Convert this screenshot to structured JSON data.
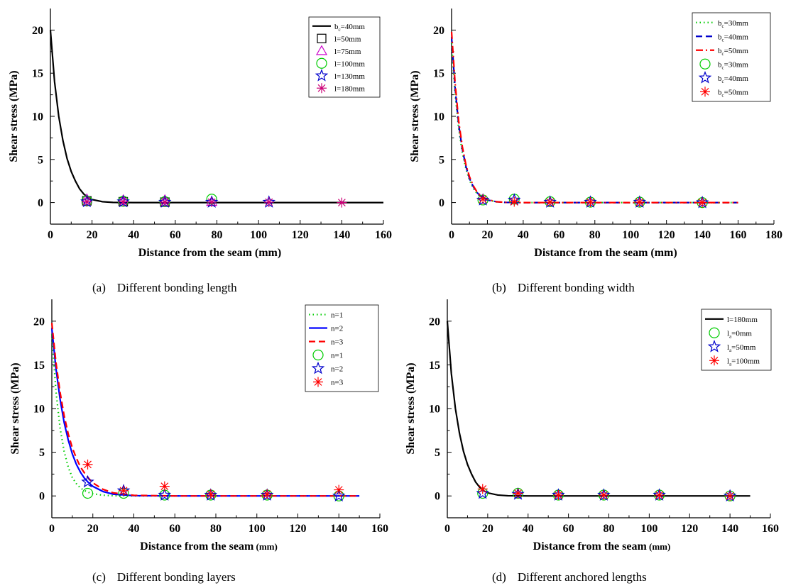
{
  "chart_data": [
    {
      "type": "line",
      "caption_label": "(a)",
      "caption": "Different bonding length",
      "xlabel": "Distance from the seam (mm)",
      "ylabel": "Shear stress (MPa)",
      "xlim": [
        0,
        160
      ],
      "ylim": [
        -2.5,
        22.5
      ],
      "xticks": [
        0,
        20,
        40,
        60,
        80,
        100,
        120,
        140,
        160
      ],
      "yticks": [
        0,
        5,
        10,
        15,
        20
      ],
      "legend_position": "top-right",
      "series": [
        {
          "name": "b",
          "name_sub": "c",
          "name_rest": "=40mm",
          "kind": "line",
          "color": "#000000",
          "dash": "solid",
          "x": [
            0,
            2,
            4,
            6,
            8,
            10,
            12,
            14,
            16,
            18,
            20,
            25,
            30,
            40,
            60,
            80,
            100,
            120,
            140,
            160
          ],
          "y": [
            20,
            14,
            10,
            7.2,
            5.1,
            3.6,
            2.5,
            1.6,
            1.0,
            0.6,
            0.35,
            0.1,
            0.02,
            0,
            0,
            0,
            0,
            0,
            0,
            0
          ]
        },
        {
          "name": "l=50mm",
          "kind": "marker",
          "marker": "square",
          "color": "#000000",
          "x": [
            17.5,
            35,
            55
          ],
          "y": [
            0.2,
            0.1,
            0.05
          ]
        },
        {
          "name": "l=75mm",
          "kind": "marker",
          "marker": "triangle",
          "color": "#cc00cc",
          "x": [
            17.5,
            35,
            55,
            77.5
          ],
          "y": [
            0.4,
            0.3,
            0.3,
            0.1
          ]
        },
        {
          "name": "l=100mm",
          "kind": "marker",
          "marker": "circle",
          "color": "#00cc00",
          "x": [
            17.5,
            35,
            55,
            77.5
          ],
          "y": [
            0.2,
            0.15,
            0.1,
            0.4
          ]
        },
        {
          "name": "l=130mm",
          "kind": "marker",
          "marker": "star",
          "color": "#0000cc",
          "x": [
            17.5,
            35,
            55,
            77.5,
            105
          ],
          "y": [
            0.1,
            0.1,
            0.05,
            0.05,
            0.05
          ]
        },
        {
          "name": "l=180mm",
          "kind": "marker",
          "marker": "asterisk",
          "color": "#cc0077",
          "x": [
            17.5,
            35,
            55,
            77.5,
            105,
            140
          ],
          "y": [
            0.1,
            0.1,
            0.05,
            0.05,
            0.05,
            0
          ]
        }
      ]
    },
    {
      "type": "line",
      "caption_label": "(b)",
      "caption": "Different bonding width",
      "xlabel": "Distance from the seam (mm)",
      "ylabel": "Shear stress (MPa)",
      "xlim": [
        0,
        180
      ],
      "ylim": [
        -2.5,
        22.5
      ],
      "xticks": [
        0,
        20,
        40,
        60,
        80,
        100,
        120,
        140,
        160,
        180
      ],
      "yticks": [
        0,
        5,
        10,
        15,
        20
      ],
      "legend_position": "top-right",
      "series": [
        {
          "name": "b",
          "name_sub": "c",
          "name_rest": "=30mm",
          "kind": "line",
          "color": "#00cc00",
          "dash": "dot",
          "x": [
            0,
            2,
            4,
            6,
            8,
            10,
            12,
            14,
            16,
            18,
            20,
            25,
            30,
            40,
            60,
            80,
            100,
            120,
            140,
            160
          ],
          "y": [
            18.5,
            12.5,
            8.5,
            5.8,
            3.9,
            2.6,
            1.7,
            1.1,
            0.7,
            0.45,
            0.3,
            0.08,
            0.02,
            0,
            0,
            0,
            0,
            0,
            0,
            0
          ]
        },
        {
          "name": "b",
          "name_sub": "c",
          "name_rest": "=40mm",
          "kind": "line",
          "color": "#0000cc",
          "dash": "dash",
          "x": [
            0,
            2,
            4,
            6,
            8,
            10,
            12,
            14,
            16,
            18,
            20,
            25,
            30,
            40,
            60,
            80,
            100,
            120,
            140,
            160
          ],
          "y": [
            19.2,
            13.2,
            9.0,
            6.2,
            4.2,
            2.8,
            1.9,
            1.2,
            0.8,
            0.5,
            0.3,
            0.1,
            0.02,
            0,
            0,
            0,
            0,
            0,
            0,
            0
          ]
        },
        {
          "name": "b",
          "name_sub": "c",
          "name_rest": "=50mm",
          "kind": "line",
          "color": "#ff0000",
          "dash": "dashdot",
          "x": [
            0,
            2,
            4,
            6,
            8,
            10,
            12,
            14,
            16,
            18,
            20,
            25,
            30,
            40,
            60,
            80,
            100,
            120,
            140,
            160
          ],
          "y": [
            19.8,
            13.8,
            9.4,
            6.5,
            4.4,
            3.0,
            2.0,
            1.3,
            0.85,
            0.55,
            0.35,
            0.1,
            0.02,
            0,
            0,
            0,
            0,
            0,
            0,
            0
          ]
        },
        {
          "name": "b",
          "name_sub": "c",
          "name_rest": "=30mm",
          "kind": "marker",
          "marker": "circle",
          "color": "#00cc00",
          "x": [
            17.5,
            35,
            55,
            77.5,
            105,
            140
          ],
          "y": [
            0.3,
            0.4,
            0.1,
            0.05,
            0.05,
            0
          ]
        },
        {
          "name": "b",
          "name_sub": "c",
          "name_rest": "=40mm",
          "kind": "marker",
          "marker": "star",
          "color": "#0000cc",
          "x": [
            17.5,
            35,
            55,
            77.5,
            105,
            140
          ],
          "y": [
            0.3,
            0.3,
            0.05,
            0.05,
            0.05,
            0
          ]
        },
        {
          "name": "b",
          "name_sub": "c",
          "name_rest": "=50mm",
          "kind": "marker",
          "marker": "asterisk",
          "color": "#ff0000",
          "x": [
            17.5,
            35,
            55,
            77.5,
            105,
            140
          ],
          "y": [
            0.4,
            0.1,
            0.05,
            0.05,
            0.05,
            0
          ]
        }
      ]
    },
    {
      "type": "line",
      "caption_label": "(c)",
      "caption": "Different bonding layers",
      "xlabel": "Distance from the seam",
      "xlabel_unit": "(mm)",
      "ylabel": "Shear stress (MPa)",
      "xlim": [
        0,
        160
      ],
      "ylim": [
        -2.5,
        22.5
      ],
      "xticks": [
        0,
        20,
        40,
        60,
        80,
        100,
        120,
        140,
        160
      ],
      "yticks": [
        0,
        5,
        10,
        15,
        20
      ],
      "legend_position": "top-right",
      "series": [
        {
          "name": "n=1",
          "kind": "line",
          "color": "#00cc00",
          "dash": "dot",
          "x": [
            0,
            2,
            4,
            6,
            8,
            10,
            12,
            14,
            16,
            18,
            20,
            25,
            30,
            40,
            60,
            80,
            100,
            120,
            150
          ],
          "y": [
            18.5,
            12.0,
            7.8,
            5.1,
            3.3,
            2.1,
            1.4,
            0.9,
            0.6,
            0.4,
            0.25,
            0.08,
            0.02,
            0,
            0,
            0,
            0,
            0,
            0
          ]
        },
        {
          "name": "n=2",
          "kind": "line",
          "color": "#0000ff",
          "dash": "solid",
          "x": [
            0,
            2,
            4,
            6,
            8,
            10,
            12,
            14,
            16,
            18,
            20,
            25,
            30,
            40,
            60,
            80,
            100,
            120,
            150
          ],
          "y": [
            19.2,
            14.6,
            11.1,
            8.4,
            6.4,
            4.8,
            3.6,
            2.7,
            2.0,
            1.5,
            1.1,
            0.5,
            0.2,
            0.03,
            0,
            0,
            0,
            0,
            0
          ]
        },
        {
          "name": "n=3",
          "kind": "line",
          "color": "#ff0000",
          "dash": "dash",
          "x": [
            0,
            2,
            4,
            6,
            8,
            10,
            12,
            14,
            16,
            18,
            20,
            25,
            30,
            40,
            60,
            80,
            100,
            120,
            150
          ],
          "y": [
            19.8,
            15.3,
            11.9,
            9.2,
            7.1,
            5.5,
            4.3,
            3.3,
            2.6,
            2.0,
            1.5,
            0.75,
            0.35,
            0.07,
            0,
            0,
            0,
            0,
            0
          ]
        },
        {
          "name": "n=1",
          "kind": "marker",
          "marker": "circle",
          "color": "#00cc00",
          "x": [
            17.5,
            35,
            55,
            77.5,
            105,
            140
          ],
          "y": [
            0.3,
            0.3,
            0.1,
            0.1,
            0.1,
            0
          ]
        },
        {
          "name": "n=2",
          "kind": "marker",
          "marker": "star",
          "color": "#0000cc",
          "x": [
            17.5,
            35,
            55,
            77.5,
            105,
            140
          ],
          "y": [
            1.6,
            0.6,
            0.1,
            0.1,
            0.1,
            0
          ]
        },
        {
          "name": "n=3",
          "kind": "marker",
          "marker": "asterisk",
          "color": "#ff0000",
          "x": [
            17.5,
            35,
            55,
            77.5,
            105,
            140
          ],
          "y": [
            3.6,
            0.6,
            1.1,
            0.2,
            0.2,
            0.7
          ]
        }
      ]
    },
    {
      "type": "line",
      "caption_label": "(d)",
      "caption": "Different anchored lengths",
      "xlabel": "Distance from the seam",
      "xlabel_unit": "(mm)",
      "ylabel": "Shear stress (MPa)",
      "xlim": [
        0,
        160
      ],
      "ylim": [
        -2.5,
        22.5
      ],
      "xticks": [
        0,
        20,
        40,
        60,
        80,
        100,
        120,
        140,
        160
      ],
      "yticks": [
        0,
        5,
        10,
        15,
        20
      ],
      "legend_position": "top-right",
      "series": [
        {
          "name": "l=180mm",
          "kind": "line",
          "color": "#000000",
          "dash": "solid",
          "x": [
            0,
            2,
            4,
            6,
            8,
            10,
            12,
            14,
            16,
            18,
            20,
            25,
            30,
            40,
            60,
            80,
            100,
            120,
            150
          ],
          "y": [
            20,
            14,
            10,
            7.2,
            5.1,
            3.6,
            2.5,
            1.6,
            1.0,
            0.6,
            0.35,
            0.1,
            0.02,
            0,
            0,
            0,
            0,
            0,
            0
          ]
        },
        {
          "name": "l",
          "name_sub": "a",
          "name_rest": "=0mm",
          "kind": "marker",
          "marker": "circle",
          "color": "#00cc00",
          "x": [
            17.5,
            35,
            55,
            77.5,
            105,
            140
          ],
          "y": [
            0.3,
            0.3,
            0.1,
            0.1,
            0.1,
            0
          ]
        },
        {
          "name": "l",
          "name_sub": "a",
          "name_rest": "=50mm",
          "kind": "marker",
          "marker": "star",
          "color": "#0000cc",
          "x": [
            17.5,
            35,
            55,
            77.5,
            105,
            140
          ],
          "y": [
            0.3,
            0.2,
            0.1,
            0.1,
            0.1,
            0
          ]
        },
        {
          "name": "l",
          "name_sub": "a",
          "name_rest": "=100mm",
          "kind": "marker",
          "marker": "asterisk",
          "color": "#ff0000",
          "x": [
            17.5,
            35,
            55,
            77.5,
            105,
            140
          ],
          "y": [
            0.8,
            0.3,
            0.1,
            0.1,
            0.1,
            0
          ]
        }
      ]
    }
  ]
}
